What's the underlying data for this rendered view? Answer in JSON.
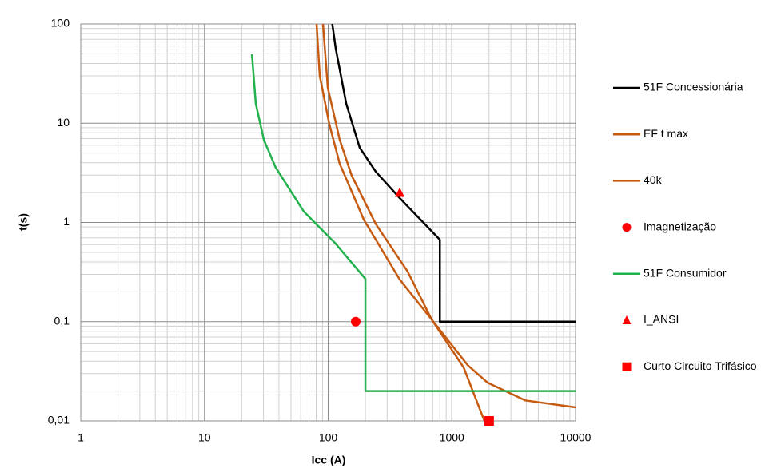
{
  "chart_data": {
    "type": "line",
    "x_label": "Icc (A)",
    "y_label": "t(s)",
    "xscale": "log",
    "yscale": "log",
    "grid": true,
    "legend": "right",
    "xlim": [
      1,
      10000
    ],
    "ylim": [
      0.01,
      100
    ],
    "xticks": [
      1,
      10,
      100,
      1000,
      10000
    ],
    "yticks": [
      {
        "value": 0.01,
        "label": "0,01"
      },
      {
        "value": 0.1,
        "label": "0,1"
      },
      1,
      10,
      100
    ],
    "series": [
      {
        "name": "51F Concessionária",
        "color": "#000000",
        "x": [
          108,
          115,
          140,
          180,
          243,
          379,
          800,
          800,
          10000
        ],
        "values": [
          100,
          57,
          15.7,
          5.66,
          3.24,
          1.76,
          0.67,
          0.1,
          0.1
        ]
      },
      {
        "name": "EF t max",
        "color": "#c55a11",
        "x": [
          80.6,
          85.5,
          102,
          124,
          194,
          379,
          687,
          1245,
          1833
        ],
        "values": [
          100,
          30,
          9.86,
          3.9,
          1.07,
          0.266,
          0.105,
          0.0346,
          0.01
        ]
      },
      {
        "name": "40k",
        "color": "#c55a11",
        "x": [
          90.8,
          99.3,
          124,
          155,
          242,
          439,
          687,
          1342,
          1945,
          3918,
          10000
        ],
        "values": [
          100,
          22.7,
          6.81,
          2.96,
          0.97,
          0.32,
          0.105,
          0.0365,
          0.0243,
          0.0161,
          0.0137
        ]
      },
      {
        "name": "Imagnetização",
        "color": "#ff0000",
        "marker": "circle",
        "x": [
          167
        ],
        "values": [
          0.1
        ]
      },
      {
        "name": "51F Consumidor",
        "color": "#22b14c",
        "x": [
          24.2,
          26,
          30.2,
          37.7,
          63.5,
          115,
          200,
          200,
          10000
        ],
        "values": [
          49.5,
          15.7,
          6.8,
          3.56,
          1.29,
          0.61,
          0.27,
          0.02,
          0.02
        ]
      },
      {
        "name": "I_ANSI",
        "color": "#ff0000",
        "marker": "triangle",
        "x": [
          379
        ],
        "values": [
          2.0
        ]
      },
      {
        "name": "Curto Circuito Trifásico",
        "color": "#ff0000",
        "marker": "square",
        "x": [
          2000
        ],
        "values": [
          0.01
        ]
      }
    ]
  }
}
